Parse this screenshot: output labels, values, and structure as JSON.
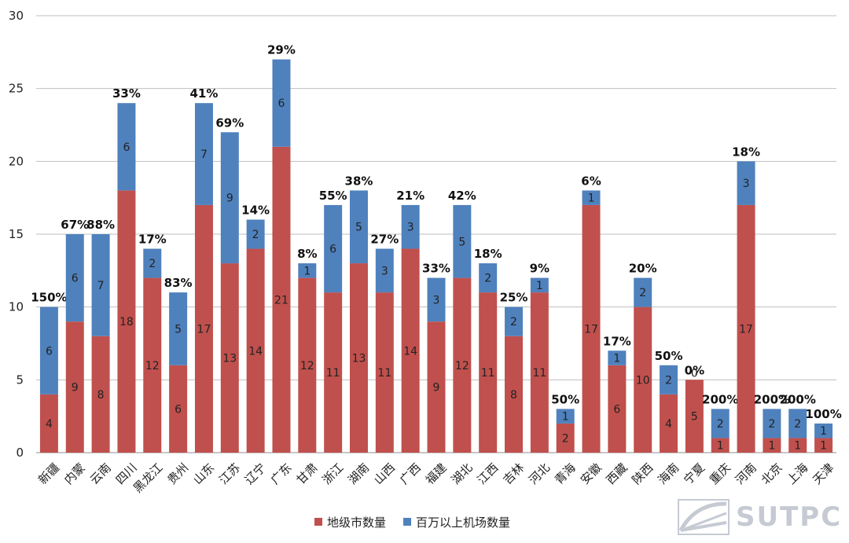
{
  "chart_data": {
    "type": "bar",
    "stacked": true,
    "categories": [
      "新疆",
      "内蒙",
      "云南",
      "四川",
      "黑龙江",
      "贵州",
      "山东",
      "江苏",
      "辽宁",
      "广东",
      "甘肃",
      "浙江",
      "湖南",
      "山西",
      "广西",
      "福建",
      "湖北",
      "江西",
      "吉林",
      "河北",
      "青海",
      "安徽",
      "西藏",
      "陕西",
      "海南",
      "宁夏",
      "重庆",
      "河南",
      "北京",
      "上海",
      "天津"
    ],
    "series": [
      {
        "name": "地级市数量",
        "color": "#C0504D",
        "values": [
          4,
          9,
          8,
          18,
          12,
          6,
          17,
          13,
          14,
          21,
          12,
          11,
          13,
          11,
          14,
          9,
          12,
          11,
          8,
          11,
          2,
          17,
          6,
          10,
          4,
          5,
          1,
          17,
          1,
          1,
          1
        ]
      },
      {
        "name": "百万以上机场数量",
        "color": "#4F81BD",
        "values": [
          6,
          6,
          7,
          6,
          2,
          5,
          7,
          9,
          2,
          6,
          1,
          6,
          5,
          3,
          3,
          3,
          5,
          2,
          2,
          1,
          1,
          1,
          1,
          2,
          2,
          0,
          2,
          3,
          2,
          2,
          1
        ]
      }
    ],
    "top_labels": [
      "150%",
      "67%",
      "88%",
      "33%",
      "17%",
      "83%",
      "41%",
      "69%",
      "14%",
      "29%",
      "8%",
      "55%",
      "38%",
      "27%",
      "21%",
      "33%",
      "42%",
      "18%",
      "25%",
      "9%",
      "50%",
      "6%",
      "17%",
      "20%",
      "50%",
      "0%",
      "200%",
      "18%",
      "200%",
      "200%",
      "100%"
    ],
    "yticks": [
      "0",
      "5",
      "10",
      "15",
      "20",
      "25",
      "30"
    ],
    "ylim": [
      0,
      30
    ],
    "grid": true,
    "legend_position": "bottom"
  },
  "legend": {
    "items": [
      {
        "label": "地级市数量",
        "color": "#C0504D"
      },
      {
        "label": "百万以上机场数量",
        "color": "#4F81BD"
      }
    ]
  },
  "logo": {
    "text": "SUTPC",
    "color": "#C5CAD3"
  }
}
